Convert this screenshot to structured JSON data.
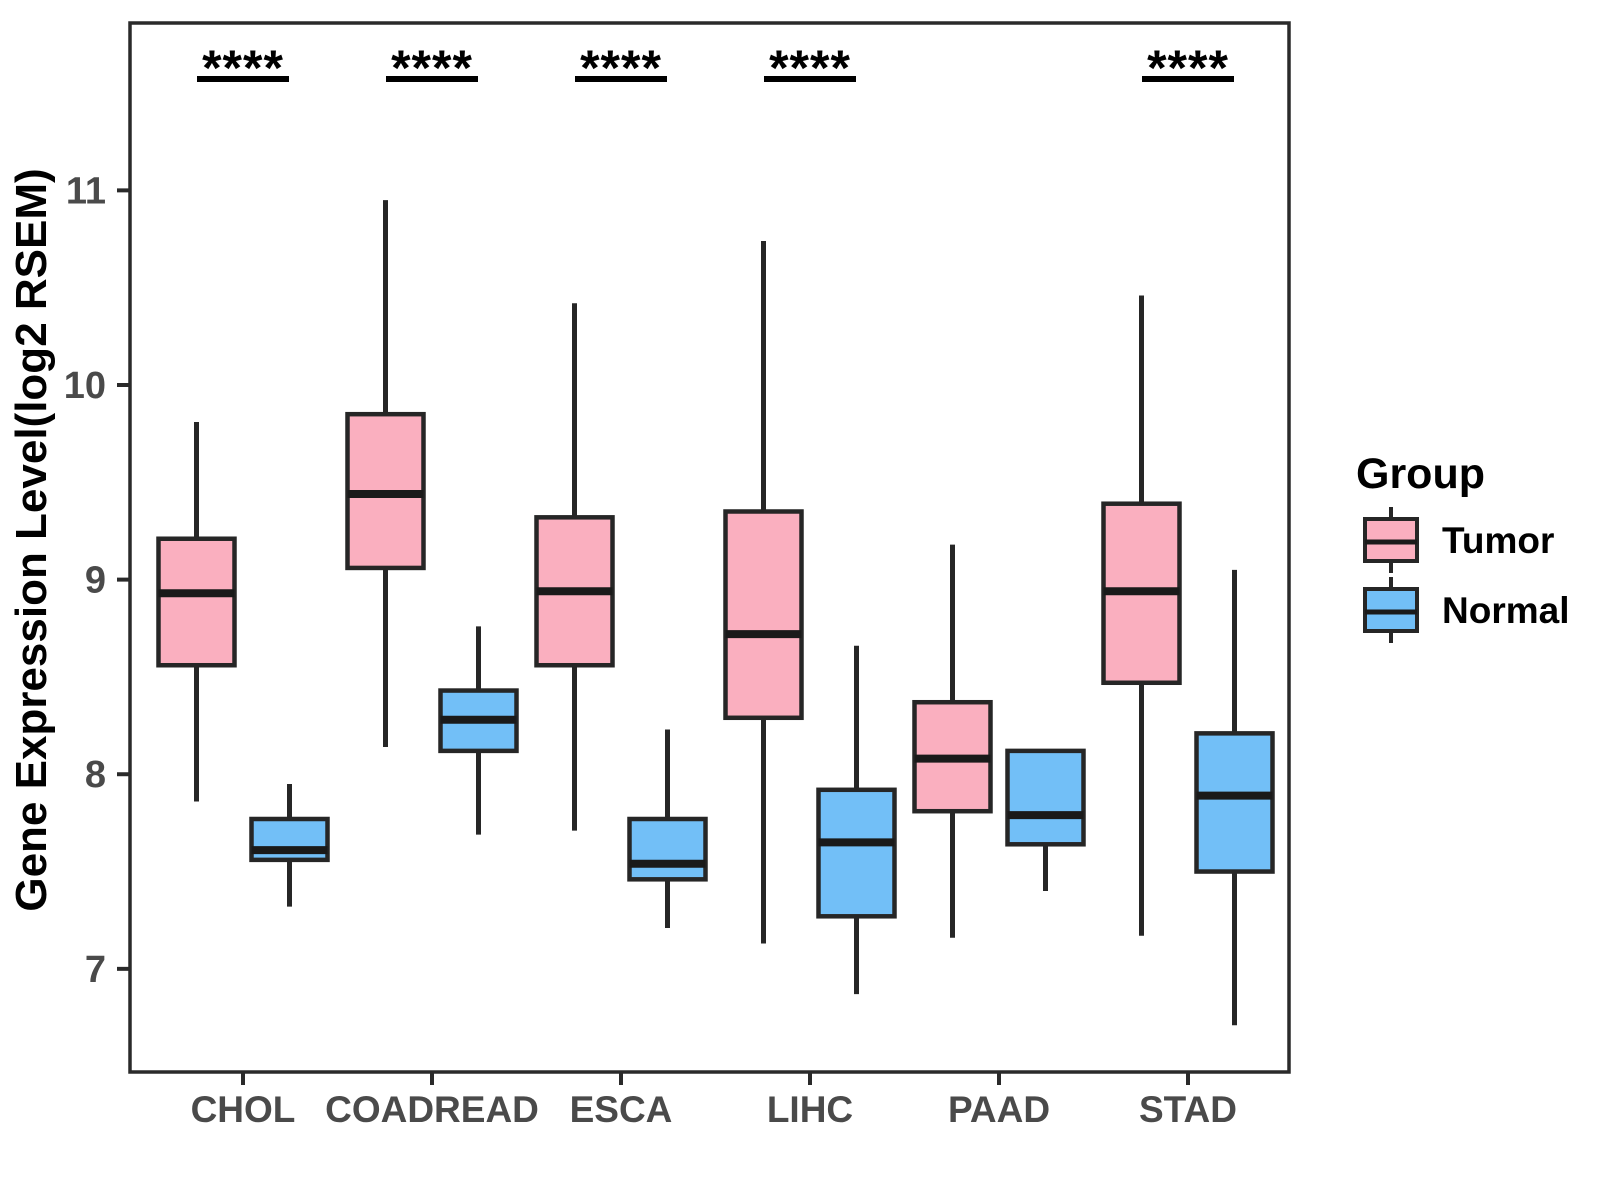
{
  "chart_data": {
    "type": "boxplot",
    "title": "",
    "xlabel": "",
    "ylabel": "Gene Expression Level(log2 RSEM)",
    "categories": [
      "CHOL",
      "COADREAD",
      "ESCA",
      "LIHC",
      "PAAD",
      "STAD"
    ],
    "yticks": [
      7,
      8,
      9,
      10,
      11
    ],
    "ylim": [
      6.47,
      11.86
    ],
    "grid": false,
    "legend": {
      "title": "Group",
      "position": "right"
    },
    "series": [
      {
        "name": "Tumor",
        "fill": "#FAAFBF",
        "boxes": [
          {
            "category": "CHOL",
            "min": 7.86,
            "q1": 8.56,
            "median": 8.93,
            "q3": 9.21,
            "max": 9.81
          },
          {
            "category": "COADREAD",
            "min": 8.14,
            "q1": 9.06,
            "median": 9.44,
            "q3": 9.85,
            "max": 10.95
          },
          {
            "category": "ESCA",
            "min": 7.71,
            "q1": 8.56,
            "median": 8.94,
            "q3": 9.32,
            "max": 10.42
          },
          {
            "category": "LIHC",
            "min": 7.13,
            "q1": 8.29,
            "median": 8.72,
            "q3": 9.35,
            "max": 10.74
          },
          {
            "category": "PAAD",
            "min": 7.16,
            "q1": 7.81,
            "median": 8.08,
            "q3": 8.37,
            "max": 9.18
          },
          {
            "category": "STAD",
            "min": 7.17,
            "q1": 8.47,
            "median": 8.94,
            "q3": 9.39,
            "max": 10.46
          }
        ]
      },
      {
        "name": "Normal",
        "fill": "#72BFF7",
        "boxes": [
          {
            "category": "CHOL",
            "min": 7.32,
            "q1": 7.56,
            "median": 7.61,
            "q3": 7.77,
            "max": 7.95
          },
          {
            "category": "COADREAD",
            "min": 7.69,
            "q1": 8.12,
            "median": 8.28,
            "q3": 8.43,
            "max": 8.76
          },
          {
            "category": "ESCA",
            "min": 7.21,
            "q1": 7.46,
            "median": 7.54,
            "q3": 7.77,
            "max": 8.23
          },
          {
            "category": "LIHC",
            "min": 6.87,
            "q1": 7.27,
            "median": 7.65,
            "q3": 7.92,
            "max": 8.66
          },
          {
            "category": "PAAD",
            "min": 7.4,
            "q1": 7.64,
            "median": 7.79,
            "q3": 8.12,
            "max": 8.12
          },
          {
            "category": "STAD",
            "min": 6.71,
            "q1": 7.5,
            "median": 7.89,
            "q3": 8.21,
            "max": 9.05
          }
        ]
      }
    ],
    "annotations": {
      "significance": [
        {
          "category": "CHOL",
          "label": "****"
        },
        {
          "category": "COADREAD",
          "label": "****"
        },
        {
          "category": "ESCA",
          "label": "****"
        },
        {
          "category": "LIHC",
          "label": "****"
        },
        {
          "category": "STAD",
          "label": "****"
        }
      ]
    }
  },
  "colors": {
    "tumor_fill": "#FAAFBF",
    "normal_fill": "#72BFF7",
    "box_border": "#262626",
    "median_line": "#1A1A1A",
    "whisker": "#262626",
    "axis_text": "#4A4A4A",
    "title_text": "#000000",
    "panel_border": "#2A2A2A",
    "background": "#FFFFFF"
  }
}
